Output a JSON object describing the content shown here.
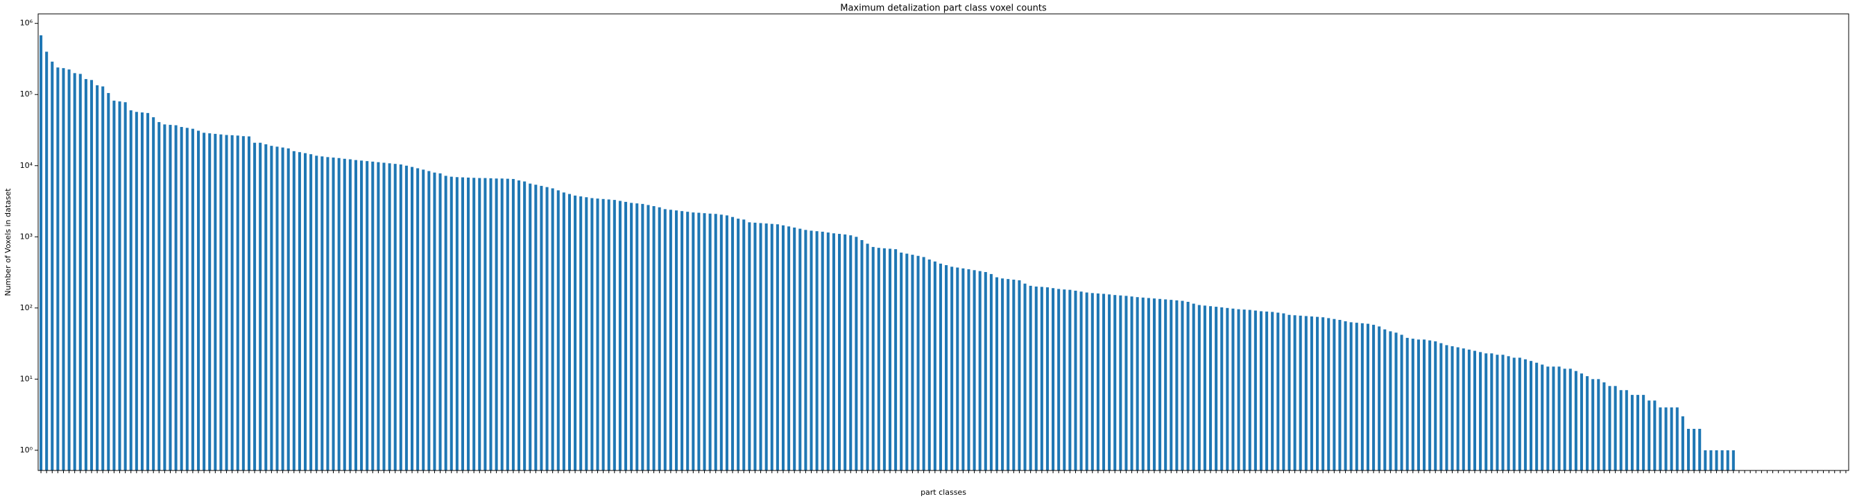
{
  "chart_data": {
    "type": "bar",
    "title": "Maximum detalization part class voxel counts",
    "x_label": "part classes",
    "y_label": "Number of Voxels in dataset",
    "color": "#1f77b4",
    "log_scale": true,
    "ylim": [
      0.52,
      1360000
    ],
    "yticks": [
      {
        "value": 1,
        "label": "10⁰"
      },
      {
        "value": 10,
        "label": "10¹"
      },
      {
        "value": 100,
        "label": "10²"
      },
      {
        "value": 1000,
        "label": "10³"
      },
      {
        "value": 10000,
        "label": "10⁴"
      },
      {
        "value": 100000,
        "label": "10⁵"
      },
      {
        "value": 1000000,
        "label": "10⁶"
      }
    ],
    "values": [
      680000,
      400000,
      290000,
      240000,
      235000,
      225000,
      200000,
      195000,
      165000,
      160000,
      135000,
      130000,
      105000,
      82000,
      80000,
      78000,
      60000,
      57000,
      56000,
      55000,
      48000,
      41000,
      38000,
      37500,
      37000,
      35000,
      34000,
      33000,
      31000,
      29000,
      28500,
      28000,
      27500,
      27000,
      26800,
      26500,
      26000,
      25800,
      21000,
      21000,
      20000,
      19000,
      18500,
      18000,
      17500,
      16000,
      15500,
      15000,
      14500,
      13800,
      13500,
      13200,
      13000,
      12800,
      12500,
      12300,
      12000,
      11800,
      11600,
      11400,
      11200,
      11000,
      10800,
      10600,
      10400,
      10000,
      9600,
      9200,
      8800,
      8400,
      8000,
      7800,
      7200,
      7000,
      6900,
      6850,
      6800,
      6750,
      6700,
      6700,
      6650,
      6600,
      6600,
      6550,
      6500,
      6200,
      6000,
      5600,
      5400,
      5200,
      5000,
      4800,
      4500,
      4200,
      4000,
      3800,
      3700,
      3600,
      3500,
      3450,
      3400,
      3350,
      3300,
      3200,
      3100,
      3000,
      2950,
      2900,
      2800,
      2700,
      2600,
      2450,
      2400,
      2350,
      2300,
      2250,
      2200,
      2180,
      2150,
      2120,
      2100,
      2050,
      2000,
      1900,
      1800,
      1750,
      1600,
      1580,
      1560,
      1540,
      1520,
      1500,
      1450,
      1400,
      1350,
      1300,
      1250,
      1220,
      1200,
      1180,
      1150,
      1120,
      1100,
      1080,
      1050,
      1000,
      900,
      800,
      720,
      700,
      690,
      680,
      670,
      600,
      580,
      560,
      540,
      520,
      480,
      450,
      420,
      400,
      380,
      370,
      360,
      350,
      340,
      330,
      320,
      300,
      270,
      260,
      255,
      250,
      245,
      220,
      205,
      200,
      198,
      195,
      190,
      185,
      182,
      180,
      175,
      170,
      165,
      162,
      160,
      158,
      155,
      152,
      150,
      148,
      145,
      142,
      140,
      138,
      136,
      134,
      132,
      130,
      128,
      126,
      122,
      115,
      110,
      108,
      106,
      104,
      102,
      100,
      98,
      96,
      95,
      94,
      92,
      90,
      89,
      88,
      86,
      84,
      80,
      79,
      78,
      77,
      76,
      75,
      74,
      72,
      70,
      68,
      65,
      63,
      62,
      61,
      60,
      58,
      55,
      50,
      47,
      45,
      42,
      38,
      37,
      36,
      36,
      35,
      34,
      32,
      30,
      29,
      28,
      27,
      26,
      25,
      24,
      23,
      23,
      22,
      22,
      21,
      20,
      20,
      19,
      18,
      17,
      16,
      15,
      15,
      15,
      14,
      14,
      13,
      12,
      11,
      10,
      10,
      9,
      8,
      8,
      7,
      7,
      6,
      6,
      6,
      5,
      5,
      4,
      4,
      4,
      4,
      3,
      2,
      2,
      2,
      1,
      1,
      1,
      1,
      1,
      1,
      0,
      0,
      0,
      0,
      0,
      0,
      0,
      0,
      0,
      0,
      0,
      0,
      0,
      0,
      0,
      0,
      0,
      0,
      0,
      0
    ],
    "categories": [
      null,
      null,
      null,
      null,
      null,
      null,
      null,
      null,
      null,
      null,
      null,
      null,
      null,
      null,
      null,
      null,
      null,
      null,
      null,
      null,
      null,
      null,
      null,
      null,
      null,
      null,
      null,
      null,
      null,
      null,
      null,
      null,
      null,
      null,
      null,
      null,
      null,
      null,
      null,
      null,
      null,
      null,
      null,
      null,
      null,
      null,
      null,
      null,
      null,
      null,
      null,
      null,
      null,
      null,
      null,
      null,
      null,
      null,
      null,
      null,
      null,
      null,
      null,
      null,
      null,
      null,
      null,
      null,
      null,
      null,
      null,
      null,
      null,
      null,
      null,
      null,
      null,
      null,
      null,
      null,
      null,
      null,
      null,
      null,
      null,
      null,
      null,
      null,
      null,
      null,
      null,
      null,
      null,
      null,
      null,
      null,
      null,
      null,
      null,
      null,
      null,
      null,
      null,
      null,
      null,
      null,
      null,
      null,
      null,
      null,
      null,
      null,
      null,
      null,
      null,
      null,
      null,
      null,
      null,
      null,
      null,
      null,
      null,
      null,
      null,
      null,
      null,
      null,
      null,
      null,
      null,
      null,
      null,
      null,
      null,
      null,
      null,
      null,
      null,
      null,
      null,
      null,
      null,
      null,
      null,
      null,
      null,
      null,
      null,
      null,
      null,
      null,
      null,
      null,
      null,
      null,
      null,
      null,
      null,
      null,
      null,
      null,
      null,
      null,
      null,
      null,
      null,
      null,
      null,
      null,
      null,
      null,
      null,
      null,
      null,
      null,
      null,
      null,
      null,
      null,
      null,
      null,
      null,
      null,
      null,
      null,
      null,
      null,
      null,
      null,
      null,
      null,
      null,
      null,
      null,
      null,
      null,
      null,
      null,
      null,
      null,
      null,
      null,
      null,
      null,
      null,
      null,
      null,
      null,
      null,
      null,
      null,
      null,
      null,
      null,
      null,
      null,
      null,
      null,
      null,
      null,
      null,
      null,
      null,
      null,
      null,
      null,
      null,
      null,
      null,
      null,
      null,
      null,
      null,
      null,
      null,
      null,
      null,
      null,
      null,
      null,
      null,
      null,
      null,
      null,
      null,
      null,
      null,
      null,
      null,
      null,
      null,
      null,
      null,
      null,
      null,
      null,
      null,
      null,
      null,
      null,
      null,
      null,
      null,
      null,
      null,
      null,
      null,
      null,
      null,
      null,
      null,
      null,
      null,
      null,
      null,
      null,
      null,
      null,
      null,
      null,
      null,
      null,
      null,
      null,
      null,
      null,
      null,
      null,
      null,
      null,
      null,
      null,
      null,
      null,
      null,
      null,
      null,
      null,
      null,
      null,
      null,
      null,
      null,
      null,
      null,
      null,
      null,
      null,
      null,
      null,
      null,
      null,
      null,
      null,
      null,
      null,
      null,
      null,
      null,
      null,
      null
    ]
  }
}
